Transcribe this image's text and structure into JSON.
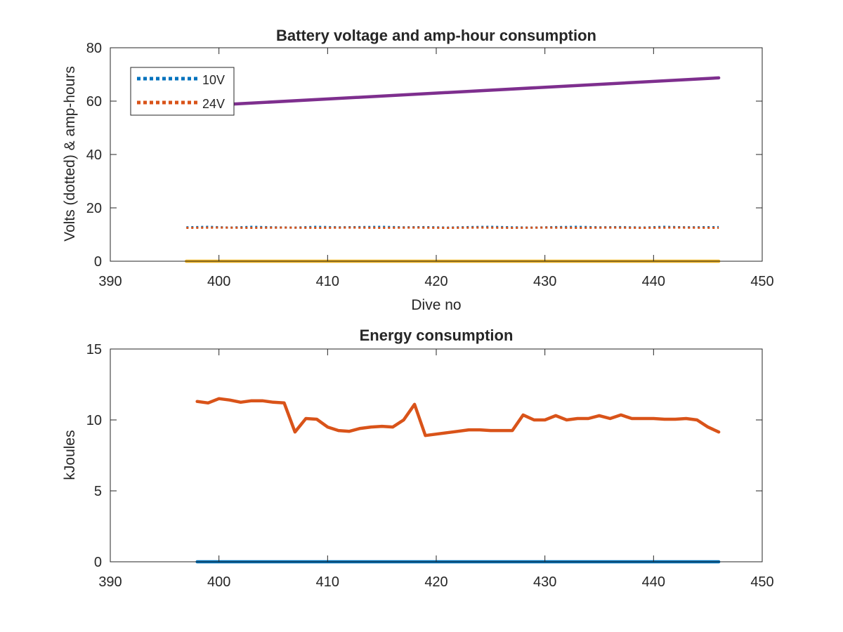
{
  "chart_data": [
    {
      "type": "line",
      "title": "Battery voltage and amp-hour consumption",
      "xlabel": "Dive no",
      "ylabel": "Volts (dotted) & amp-hours",
      "xlim": [
        390,
        450
      ],
      "ylim": [
        0,
        80
      ],
      "xticks": [
        390,
        400,
        410,
        420,
        430,
        440,
        450
      ],
      "yticks": [
        0,
        20,
        40,
        60,
        80
      ],
      "grid": false,
      "legend_position": "top-left",
      "series": [
        {
          "name": "10V",
          "style": "dotted",
          "color": "#0072BD",
          "x": [
            397,
            399,
            401,
            403,
            405,
            407,
            409,
            411,
            413,
            415,
            417,
            419,
            421,
            423,
            425,
            427,
            429,
            431,
            433,
            435,
            437,
            439,
            441,
            443,
            446
          ],
          "y": [
            12.7,
            12.9,
            12.6,
            12.9,
            12.7,
            12.6,
            12.9,
            12.7,
            12.8,
            12.9,
            12.7,
            12.8,
            12.6,
            12.8,
            12.9,
            12.7,
            12.6,
            12.8,
            12.9,
            12.7,
            12.8,
            12.6,
            12.9,
            12.7,
            12.8
          ]
        },
        {
          "name": "24V",
          "style": "dotted",
          "color": "#D95319",
          "x": [
            397,
            400,
            403,
            406,
            409,
            412,
            415,
            418,
            421,
            424,
            427,
            430,
            433,
            436,
            439,
            442,
            446
          ],
          "y": [
            12.5,
            12.6,
            12.5,
            12.6,
            12.5,
            12.6,
            12.5,
            12.6,
            12.5,
            12.6,
            12.5,
            12.6,
            12.5,
            12.6,
            12.5,
            12.6,
            12.5
          ]
        },
        {
          "style": "solid",
          "color": "#EDB120",
          "x": [
            397,
            446
          ],
          "y": [
            0,
            0
          ]
        },
        {
          "style": "solid",
          "color": "#7E2F8E",
          "x": [
            400,
            446
          ],
          "y": [
            58.6,
            68.7
          ]
        }
      ]
    },
    {
      "type": "line",
      "title": "Energy consumption",
      "xlabel": "",
      "ylabel": "kJoules",
      "xlim": [
        390,
        450
      ],
      "ylim": [
        0,
        15
      ],
      "xticks": [
        390,
        400,
        410,
        420,
        430,
        440,
        450
      ],
      "yticks": [
        0,
        5,
        10,
        15
      ],
      "grid": false,
      "series": [
        {
          "style": "solid",
          "color": "#0072BD",
          "x": [
            398,
            446
          ],
          "y": [
            0,
            0
          ]
        },
        {
          "style": "solid",
          "color": "#D95319",
          "x": [
            398,
            399,
            400,
            401,
            402,
            403,
            404,
            405,
            406,
            407,
            408,
            409,
            410,
            411,
            412,
            413,
            414,
            415,
            416,
            417,
            418,
            419,
            420,
            421,
            422,
            423,
            424,
            425,
            426,
            427,
            428,
            429,
            430,
            431,
            432,
            433,
            434,
            435,
            436,
            437,
            438,
            439,
            440,
            441,
            442,
            443,
            444,
            445,
            446
          ],
          "y": [
            11.3,
            11.2,
            11.5,
            11.4,
            11.25,
            11.35,
            11.35,
            11.25,
            11.2,
            9.15,
            10.1,
            10.05,
            9.5,
            9.25,
            9.2,
            9.4,
            9.5,
            9.55,
            9.5,
            10.0,
            11.1,
            8.9,
            9.0,
            9.1,
            9.2,
            9.3,
            9.3,
            9.25,
            9.25,
            9.25,
            10.35,
            10.0,
            10.0,
            10.3,
            10.0,
            10.1,
            10.1,
            10.3,
            10.1,
            10.35,
            10.1,
            10.1,
            10.1,
            10.05,
            10.05,
            10.1,
            10.0,
            9.5,
            9.15
          ]
        }
      ]
    }
  ]
}
